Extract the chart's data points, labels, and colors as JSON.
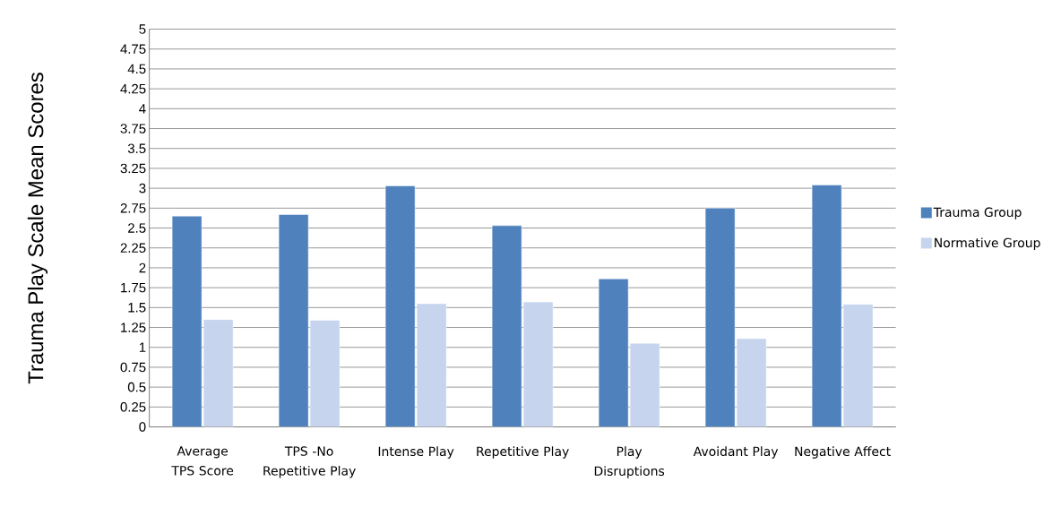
{
  "chart_data": {
    "type": "bar",
    "ylabel": "Trauma Play Scale Mean Scores",
    "categories": [
      "Average TPS Score",
      "TPS -No Repetitive Play",
      "Intense Play",
      "Repetitive Play",
      "Play Disruptions",
      "Avoidant Play",
      "Negative Affect"
    ],
    "series": [
      {
        "name": "Trauma Group",
        "color": "#4f81bd",
        "values": [
          2.65,
          2.67,
          3.03,
          2.53,
          1.86,
          2.75,
          3.04
        ]
      },
      {
        "name": "Normative Group",
        "color": "#c6d4ee",
        "values": [
          1.35,
          1.34,
          1.55,
          1.57,
          1.05,
          1.11,
          1.54
        ]
      }
    ],
    "ylim": [
      0,
      5
    ],
    "yticks": [
      0,
      0.25,
      0.5,
      0.75,
      1,
      1.25,
      1.5,
      1.75,
      2,
      2.25,
      2.5,
      2.75,
      3,
      3.25,
      3.5,
      3.75,
      4,
      4.25,
      4.5,
      4.75,
      5
    ],
    "grid": "y",
    "legend": "right"
  }
}
